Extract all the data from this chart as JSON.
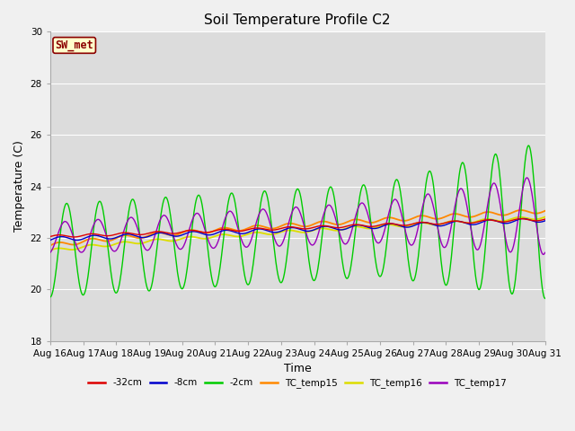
{
  "title": "Soil Temperature Profile C2",
  "xlabel": "Time",
  "ylabel": "Temperature (C)",
  "ylim": [
    18,
    30
  ],
  "yticks": [
    18,
    20,
    22,
    24,
    26,
    28,
    30
  ],
  "xtick_labels": [
    "Aug 16",
    "Aug 17",
    "Aug 18",
    "Aug 19",
    "Aug 20",
    "Aug 21",
    "Aug 22",
    "Aug 23",
    "Aug 24",
    "Aug 25",
    "Aug 26",
    "Aug 27",
    "Aug 28",
    "Aug 29",
    "Aug 30",
    "Aug 31"
  ],
  "bg_color": "#dcdcdc",
  "fig_color": "#f0f0f0",
  "line_colors": {
    "tc32": "#dd0000",
    "tc8": "#0000cc",
    "tc2": "#00cc00",
    "tc15": "#ff8800",
    "tc16": "#dddd00",
    "tc17": "#9900bb"
  },
  "legend_labels": [
    "-32cm",
    "-8cm",
    "-2cm",
    "TC_temp15",
    "TC_temp16",
    "TC_temp17"
  ],
  "annotation_text": "SW_met",
  "annotation_bg": "#ffffcc",
  "annotation_border": "#8b0000"
}
